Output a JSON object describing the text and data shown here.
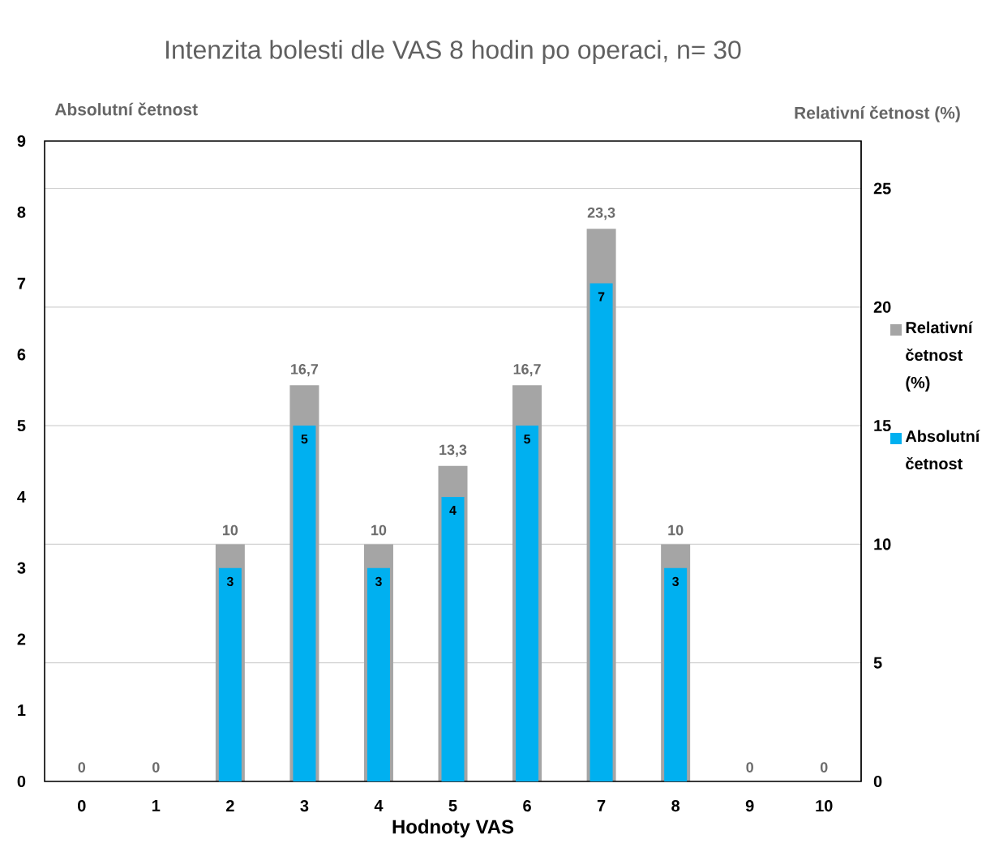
{
  "chart_data": {
    "type": "bar",
    "title": "Intenzita bolesti dle VAS 8 hodin po operaci, n= 30",
    "xlabel": "Hodnoty VAS",
    "ylabel": "Absolutní četnost",
    "y2label": "Relativní četnost (%)",
    "categories": [
      "0",
      "1",
      "2",
      "3",
      "4",
      "5",
      "6",
      "7",
      "8",
      "9",
      "10"
    ],
    "series": [
      {
        "name": "Relativní četnost (%)",
        "color": "#a5a5a5",
        "axis": "y2",
        "values": [
          0,
          0,
          10,
          16.7,
          10,
          13.3,
          16.7,
          23.3,
          10,
          0,
          0
        ],
        "value_labels": [
          "0",
          "0",
          "10",
          "16,7",
          "10",
          "13,3",
          "16,7",
          "23,3",
          "10",
          "0",
          "0"
        ]
      },
      {
        "name": "Absolutní četnost",
        "color": "#00b0f0",
        "values": [
          0,
          0,
          3,
          5,
          3,
          4,
          5,
          7,
          3,
          0,
          0
        ],
        "value_labels": [
          null,
          null,
          "3",
          "5",
          "3",
          "4",
          "5",
          "7",
          "3",
          null,
          null
        ]
      }
    ],
    "ylim": [
      0,
      9
    ],
    "yticks": [
      0,
      1,
      2,
      3,
      4,
      5,
      6,
      7,
      8,
      9
    ],
    "y2lim": [
      0,
      27
    ],
    "y2ticks": [
      0,
      5,
      10,
      15,
      20,
      25
    ],
    "grid": "y",
    "legend": "right"
  }
}
